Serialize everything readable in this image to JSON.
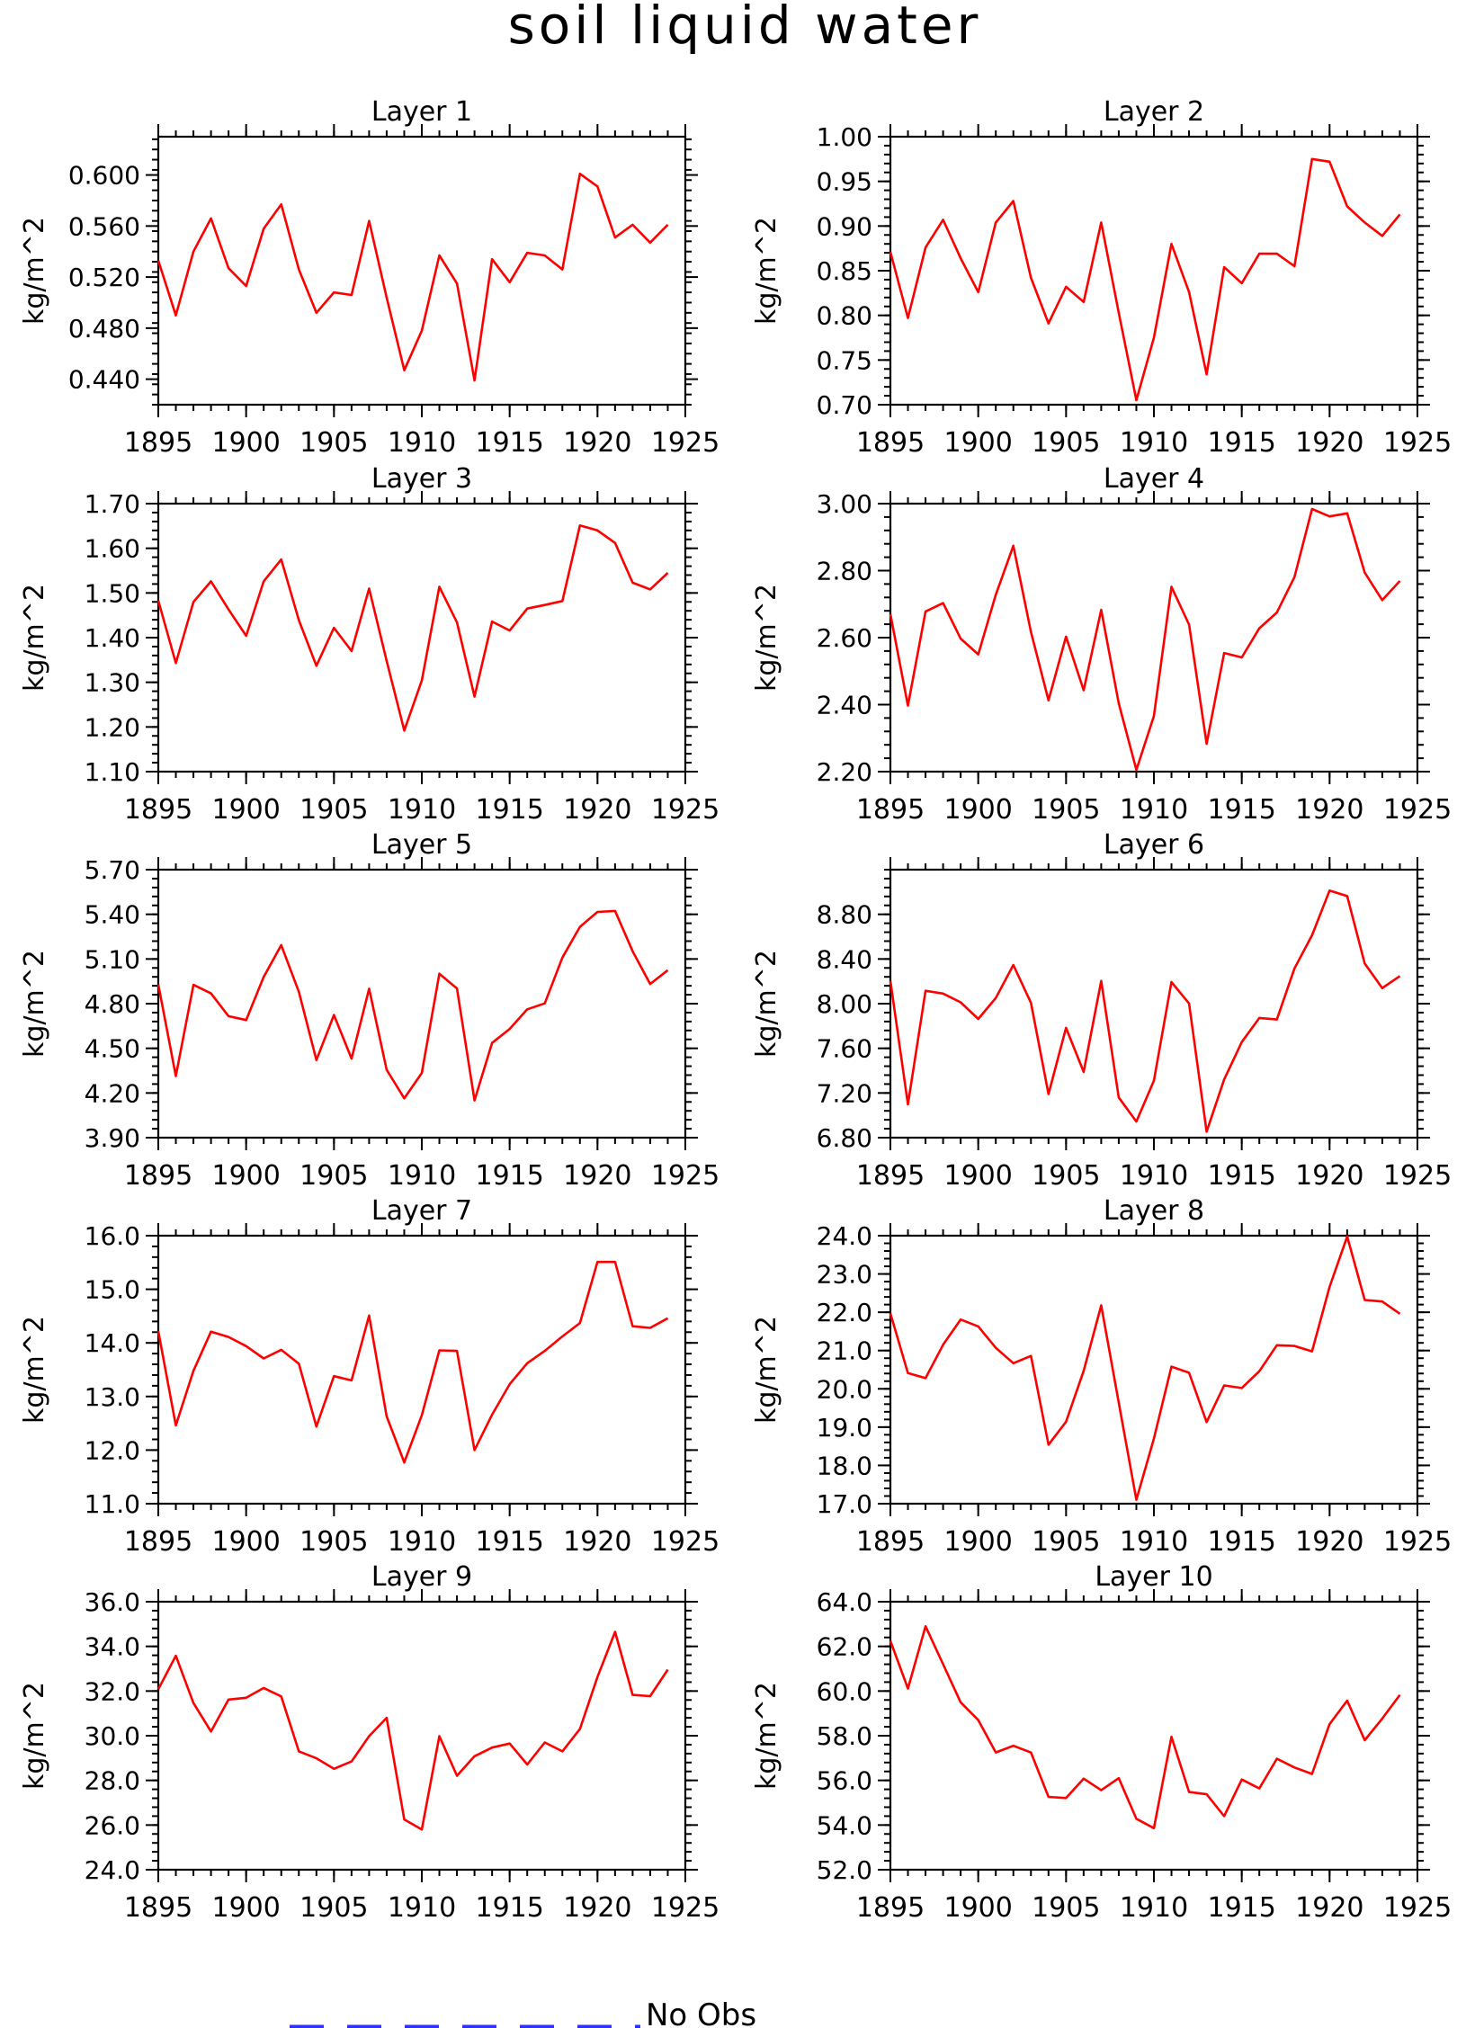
{
  "title": "soil liquid water",
  "legend": {
    "label": "No Obs",
    "color": "#2d31ff"
  },
  "series_color": "#ff0000",
  "chart_data": [
    {
      "type": "line",
      "title": "Layer 1",
      "ylabel": "kg/m^2",
      "xlim": [
        1895,
        1925
      ],
      "xticks": [
        1895,
        1900,
        1905,
        1910,
        1915,
        1920,
        1925
      ],
      "ylim": [
        0.42,
        0.63
      ],
      "yticks": [
        "0.440",
        "0.480",
        "0.520",
        "0.560",
        "0.600"
      ],
      "yminor": 0.008,
      "x": [
        1895,
        1896,
        1897,
        1898,
        1899,
        1900,
        1901,
        1902,
        1903,
        1904,
        1905,
        1906,
        1907,
        1908,
        1909,
        1910,
        1911,
        1912,
        1913,
        1914,
        1915,
        1916,
        1917,
        1918,
        1919,
        1920,
        1921,
        1922,
        1923,
        1924
      ],
      "values": [
        0.533,
        0.49,
        0.54,
        0.566,
        0.527,
        0.513,
        0.558,
        0.577,
        0.526,
        0.492,
        0.508,
        0.506,
        0.564,
        0.504,
        0.447,
        0.478,
        0.537,
        0.515,
        0.439,
        0.534,
        0.516,
        0.539,
        0.537,
        0.526,
        0.601,
        0.591,
        0.551,
        0.561,
        0.547,
        0.561
      ]
    },
    {
      "type": "line",
      "title": "Layer 2",
      "ylabel": "kg/m^2",
      "xlim": [
        1895,
        1925
      ],
      "xticks": [
        1895,
        1900,
        1905,
        1910,
        1915,
        1920,
        1925
      ],
      "ylim": [
        0.7,
        1.0
      ],
      "yticks": [
        "0.70",
        "0.75",
        "0.80",
        "0.85",
        "0.90",
        "0.95",
        "1.00"
      ],
      "yminor": 0.01,
      "x": [
        1895,
        1896,
        1897,
        1898,
        1899,
        1900,
        1901,
        1902,
        1903,
        1904,
        1905,
        1906,
        1907,
        1908,
        1909,
        1910,
        1911,
        1912,
        1913,
        1914,
        1915,
        1916,
        1917,
        1918,
        1919,
        1920,
        1921,
        1922,
        1923,
        1924
      ],
      "values": [
        0.871,
        0.797,
        0.876,
        0.907,
        0.864,
        0.826,
        0.904,
        0.928,
        0.842,
        0.791,
        0.832,
        0.815,
        0.904,
        0.803,
        0.705,
        0.775,
        0.88,
        0.826,
        0.734,
        0.854,
        0.836,
        0.869,
        0.869,
        0.855,
        0.975,
        0.972,
        0.922,
        0.904,
        0.889,
        0.913
      ]
    },
    {
      "type": "line",
      "title": "Layer 3",
      "ylabel": "kg/m^2",
      "xlim": [
        1895,
        1925
      ],
      "xticks": [
        1895,
        1900,
        1905,
        1910,
        1915,
        1920,
        1925
      ],
      "ylim": [
        1.1,
        1.7
      ],
      "yticks": [
        "1.10",
        "1.20",
        "1.30",
        "1.40",
        "1.50",
        "1.60",
        "1.70"
      ],
      "yminor": 0.02,
      "x": [
        1895,
        1896,
        1897,
        1898,
        1899,
        1900,
        1901,
        1902,
        1903,
        1904,
        1905,
        1906,
        1907,
        1908,
        1909,
        1910,
        1911,
        1912,
        1913,
        1914,
        1915,
        1916,
        1917,
        1918,
        1919,
        1920,
        1921,
        1922,
        1923,
        1924
      ],
      "values": [
        1.483,
        1.343,
        1.48,
        1.526,
        1.463,
        1.404,
        1.526,
        1.575,
        1.439,
        1.337,
        1.422,
        1.37,
        1.51,
        1.348,
        1.192,
        1.304,
        1.514,
        1.434,
        1.268,
        1.436,
        1.416,
        1.465,
        1.473,
        1.482,
        1.651,
        1.64,
        1.612,
        1.523,
        1.508,
        1.545
      ]
    },
    {
      "type": "line",
      "title": "Layer 4",
      "ylabel": "kg/m^2",
      "xlim": [
        1895,
        1925
      ],
      "xticks": [
        1895,
        1900,
        1905,
        1910,
        1915,
        1920,
        1925
      ],
      "ylim": [
        2.2,
        3.0
      ],
      "yticks": [
        "2.20",
        "2.40",
        "2.60",
        "2.80",
        "3.00"
      ],
      "yminor": 0.04,
      "x": [
        1895,
        1896,
        1897,
        1898,
        1899,
        1900,
        1901,
        1902,
        1903,
        1904,
        1905,
        1906,
        1907,
        1908,
        1909,
        1910,
        1911,
        1912,
        1913,
        1914,
        1915,
        1916,
        1917,
        1918,
        1919,
        1920,
        1921,
        1922,
        1923,
        1924
      ],
      "values": [
        2.67,
        2.397,
        2.678,
        2.703,
        2.597,
        2.55,
        2.728,
        2.874,
        2.617,
        2.413,
        2.603,
        2.443,
        2.683,
        2.404,
        2.205,
        2.366,
        2.752,
        2.639,
        2.283,
        2.554,
        2.541,
        2.628,
        2.675,
        2.781,
        2.984,
        2.962,
        2.971,
        2.794,
        2.712,
        2.769
      ]
    },
    {
      "type": "line",
      "title": "Layer 5",
      "ylabel": "kg/m^2",
      "xlim": [
        1895,
        1925
      ],
      "xticks": [
        1895,
        1900,
        1905,
        1910,
        1915,
        1920,
        1925
      ],
      "ylim": [
        3.9,
        5.7
      ],
      "yticks": [
        "3.90",
        "4.20",
        "4.50",
        "4.80",
        "5.10",
        "5.40",
        "5.70"
      ],
      "yminor": 0.06,
      "x": [
        1895,
        1896,
        1897,
        1898,
        1899,
        1900,
        1901,
        1902,
        1903,
        1904,
        1905,
        1906,
        1907,
        1908,
        1909,
        1910,
        1911,
        1912,
        1913,
        1914,
        1915,
        1916,
        1917,
        1918,
        1919,
        1920,
        1921,
        1922,
        1923,
        1924
      ],
      "values": [
        4.929,
        4.314,
        4.926,
        4.869,
        4.716,
        4.69,
        4.98,
        5.193,
        4.88,
        4.421,
        4.724,
        4.431,
        4.9,
        4.356,
        4.164,
        4.334,
        5.001,
        4.902,
        4.15,
        4.536,
        4.63,
        4.762,
        4.802,
        5.109,
        5.316,
        5.416,
        5.423,
        5.152,
        4.932,
        5.025
      ]
    },
    {
      "type": "line",
      "title": "Layer 6",
      "ylabel": "kg/m^2",
      "xlim": [
        1895,
        1925
      ],
      "xticks": [
        1895,
        1900,
        1905,
        1910,
        1915,
        1920,
        1925
      ],
      "ylim": [
        6.8,
        9.2
      ],
      "yticks": [
        "6.80",
        "7.20",
        "7.60",
        "8.00",
        "8.40",
        "8.80"
      ],
      "yminor": 0.08,
      "x": [
        1895,
        1896,
        1897,
        1898,
        1899,
        1900,
        1901,
        1902,
        1903,
        1904,
        1905,
        1906,
        1907,
        1908,
        1909,
        1910,
        1911,
        1912,
        1913,
        1914,
        1915,
        1916,
        1917,
        1918,
        1919,
        1920,
        1921,
        1922,
        1923,
        1924
      ],
      "values": [
        8.204,
        7.098,
        8.115,
        8.09,
        8.012,
        7.863,
        8.051,
        8.346,
        8.007,
        7.19,
        7.783,
        7.389,
        8.204,
        7.16,
        6.944,
        7.311,
        8.194,
        8.002,
        6.854,
        7.321,
        7.656,
        7.872,
        7.858,
        8.316,
        8.612,
        9.012,
        8.963,
        8.359,
        8.139,
        8.247
      ]
    },
    {
      "type": "line",
      "title": "Layer 7",
      "ylabel": "kg/m^2",
      "xlim": [
        1895,
        1925
      ],
      "xticks": [
        1895,
        1900,
        1905,
        1910,
        1915,
        1920,
        1925
      ],
      "ylim": [
        11.0,
        16.0
      ],
      "yticks": [
        "11.0",
        "12.0",
        "13.0",
        "14.0",
        "15.0",
        "16.0"
      ],
      "yminor": 0.2,
      "x": [
        1895,
        1896,
        1897,
        1898,
        1899,
        1900,
        1901,
        1902,
        1903,
        1904,
        1905,
        1906,
        1907,
        1908,
        1909,
        1910,
        1911,
        1912,
        1913,
        1914,
        1915,
        1916,
        1917,
        1918,
        1919,
        1920,
        1921,
        1922,
        1923,
        1924
      ],
      "values": [
        14.22,
        12.46,
        13.48,
        14.21,
        14.11,
        13.94,
        13.71,
        13.87,
        13.61,
        12.44,
        13.38,
        13.3,
        14.51,
        12.63,
        11.77,
        12.65,
        13.86,
        13.85,
        12.0,
        12.66,
        13.23,
        13.62,
        13.85,
        14.12,
        14.37,
        15.51,
        15.51,
        14.31,
        14.28,
        14.46
      ]
    },
    {
      "type": "line",
      "title": "Layer 8",
      "ylabel": "kg/m^2",
      "xlim": [
        1895,
        1925
      ],
      "xticks": [
        1895,
        1900,
        1905,
        1910,
        1915,
        1920,
        1925
      ],
      "ylim": [
        17.0,
        24.0
      ],
      "yticks": [
        "17.0",
        "18.0",
        "19.0",
        "20.0",
        "21.0",
        "22.0",
        "23.0",
        "24.0"
      ],
      "yminor": 0.2,
      "x": [
        1895,
        1896,
        1897,
        1898,
        1899,
        1900,
        1901,
        1902,
        1903,
        1904,
        1905,
        1906,
        1907,
        1908,
        1909,
        1910,
        1911,
        1912,
        1913,
        1914,
        1915,
        1916,
        1917,
        1918,
        1919,
        1920,
        1921,
        1922,
        1923,
        1924
      ],
      "values": [
        21.97,
        20.41,
        20.28,
        21.15,
        21.81,
        21.63,
        21.07,
        20.67,
        20.86,
        18.54,
        19.14,
        20.47,
        22.18,
        19.64,
        17.1,
        18.7,
        20.58,
        20.42,
        19.13,
        20.09,
        20.02,
        20.46,
        21.14,
        21.12,
        20.98,
        22.66,
        23.98,
        22.32,
        22.28,
        21.96
      ]
    },
    {
      "type": "line",
      "title": "Layer 9",
      "ylabel": "kg/m^2",
      "xlim": [
        1895,
        1925
      ],
      "xticks": [
        1895,
        1900,
        1905,
        1910,
        1915,
        1920,
        1925
      ],
      "ylim": [
        24.0,
        36.0
      ],
      "yticks": [
        "24.0",
        "26.0",
        "28.0",
        "30.0",
        "32.0",
        "34.0",
        "36.0"
      ],
      "yminor": 0.4,
      "x": [
        1895,
        1896,
        1897,
        1898,
        1899,
        1900,
        1901,
        1902,
        1903,
        1904,
        1905,
        1906,
        1907,
        1908,
        1909,
        1910,
        1911,
        1912,
        1913,
        1914,
        1915,
        1916,
        1917,
        1918,
        1919,
        1920,
        1921,
        1922,
        1923,
        1924
      ],
      "values": [
        32.08,
        33.58,
        31.46,
        30.19,
        31.62,
        31.7,
        32.14,
        31.76,
        29.3,
        28.99,
        28.52,
        28.85,
        29.98,
        30.8,
        26.25,
        25.8,
        29.98,
        28.21,
        29.08,
        29.47,
        29.65,
        28.71,
        29.7,
        29.3,
        30.3,
        32.63,
        34.65,
        31.83,
        31.77,
        32.96
      ]
    },
    {
      "type": "line",
      "title": "Layer 10",
      "ylabel": "kg/m^2",
      "xlim": [
        1895,
        1925
      ],
      "xticks": [
        1895,
        1900,
        1905,
        1910,
        1915,
        1920,
        1925
      ],
      "ylim": [
        52.0,
        64.0
      ],
      "yticks": [
        "52.0",
        "54.0",
        "56.0",
        "58.0",
        "60.0",
        "62.0",
        "64.0"
      ],
      "yminor": 0.4,
      "x": [
        1895,
        1896,
        1897,
        1898,
        1899,
        1900,
        1901,
        1902,
        1903,
        1904,
        1905,
        1906,
        1907,
        1908,
        1909,
        1910,
        1911,
        1912,
        1913,
        1914,
        1915,
        1916,
        1917,
        1918,
        1919,
        1920,
        1921,
        1922,
        1923,
        1924
      ],
      "values": [
        62.25,
        60.11,
        62.9,
        61.2,
        59.5,
        58.7,
        57.25,
        57.55,
        57.25,
        55.26,
        55.21,
        56.08,
        55.56,
        56.1,
        54.28,
        53.86,
        57.95,
        55.48,
        55.38,
        54.4,
        56.04,
        55.64,
        56.97,
        56.58,
        56.29,
        58.52,
        59.57,
        57.8,
        58.77,
        59.83
      ]
    }
  ]
}
